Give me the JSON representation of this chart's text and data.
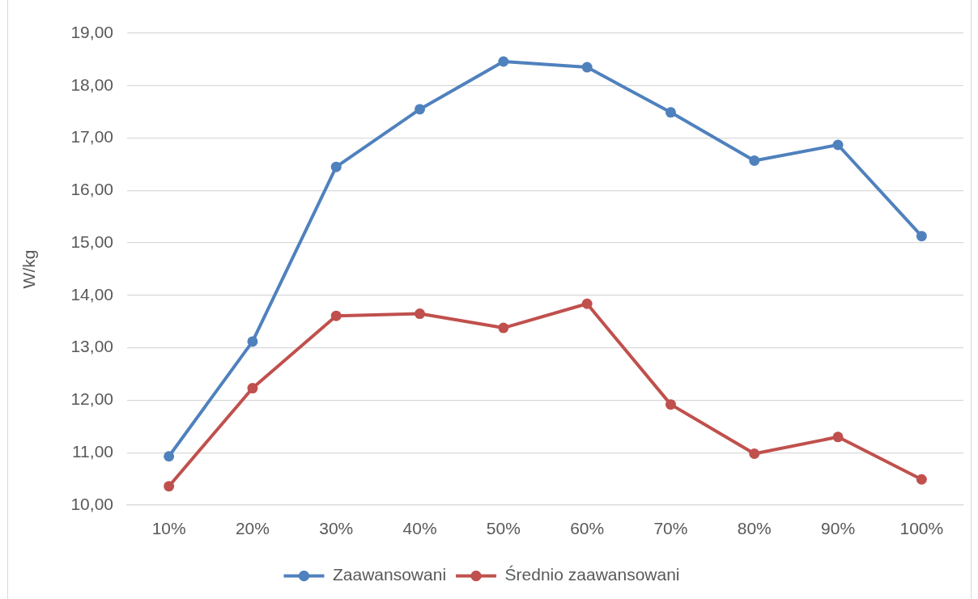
{
  "chart_data": {
    "type": "line",
    "ylabel": "W/kg",
    "categories": [
      "10%",
      "20%",
      "30%",
      "40%",
      "50%",
      "60%",
      "70%",
      "80%",
      "90%",
      "100%"
    ],
    "series": [
      {
        "name": "Zaawansowani",
        "color": "#4f81bd",
        "values": [
          10.93,
          13.12,
          16.45,
          17.55,
          18.46,
          18.35,
          17.49,
          16.57,
          16.87,
          15.13
        ]
      },
      {
        "name": "Średnio zaawansowani",
        "color": "#c0504d",
        "values": [
          10.36,
          12.23,
          13.61,
          13.65,
          13.38,
          13.84,
          11.92,
          10.98,
          11.3,
          10.49
        ]
      }
    ],
    "ylim": [
      10,
      19
    ],
    "yticks": [
      {
        "value": 10,
        "label": "10,00"
      },
      {
        "value": 11,
        "label": "11,00"
      },
      {
        "value": 12,
        "label": "12,00"
      },
      {
        "value": 13,
        "label": "13,00"
      },
      {
        "value": 14,
        "label": "14,00"
      },
      {
        "value": 15,
        "label": "15,00"
      },
      {
        "value": 16,
        "label": "16,00"
      },
      {
        "value": 17,
        "label": "17,00"
      },
      {
        "value": 18,
        "label": "18,00"
      },
      {
        "value": 19,
        "label": "19,00"
      }
    ],
    "grid": "y",
    "legend": "bottom",
    "marker": "circle",
    "line_style": "solid"
  }
}
